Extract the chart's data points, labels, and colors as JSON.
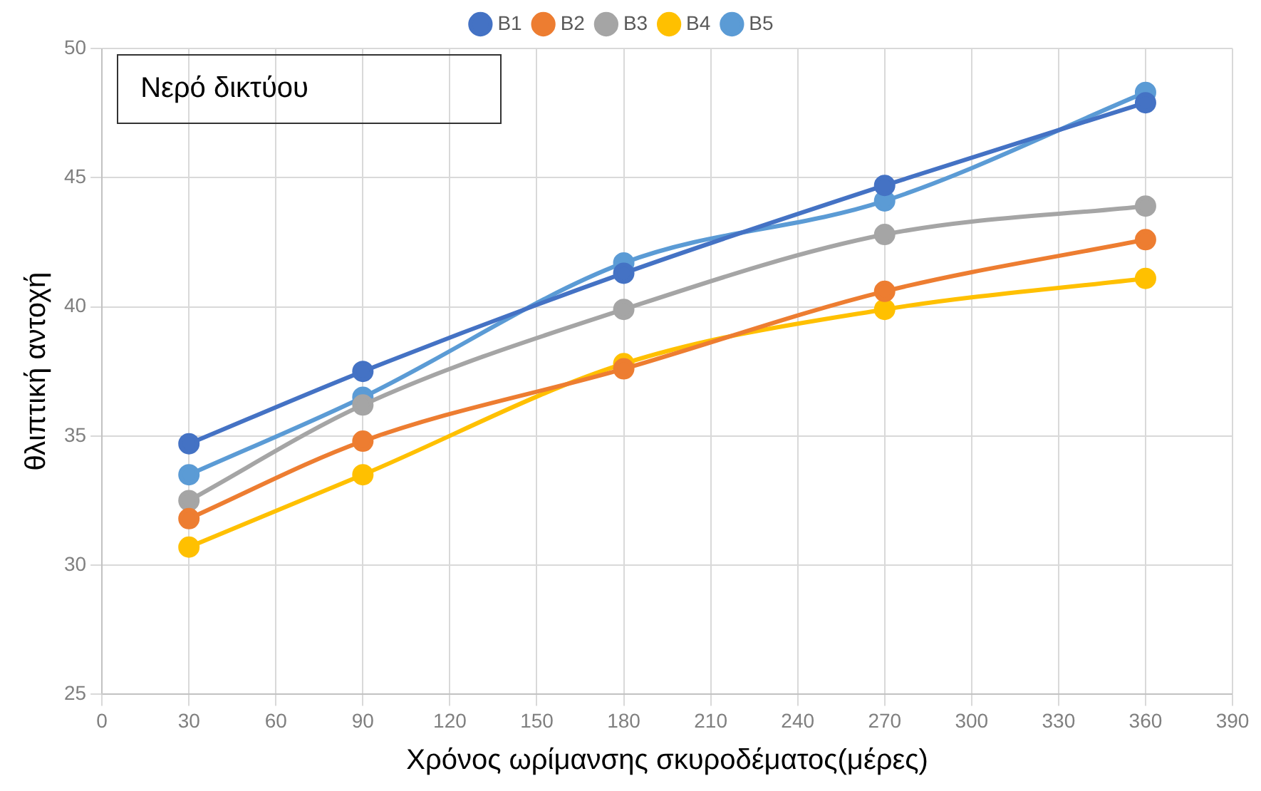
{
  "chart_data": {
    "type": "line",
    "title": "Νερό δικτύου",
    "xlabel": "Χρόνος ωρίμανσης σκυροδέματος(μέρες)",
    "ylabel": "θλιπτική αντοχή",
    "x": [
      30,
      90,
      180,
      270,
      360
    ],
    "series": [
      {
        "name": "B1",
        "color": "#4472c4",
        "values": [
          34.7,
          37.5,
          41.3,
          44.7,
          47.9
        ]
      },
      {
        "name": "B2",
        "color": "#ed7d31",
        "values": [
          31.8,
          34.8,
          37.6,
          40.6,
          42.6
        ]
      },
      {
        "name": "B3",
        "color": "#a5a5a5",
        "values": [
          32.5,
          36.2,
          39.9,
          42.8,
          43.9
        ]
      },
      {
        "name": "B4",
        "color": "#ffc000",
        "values": [
          30.7,
          33.5,
          37.8,
          39.9,
          41.1
        ]
      },
      {
        "name": "B5",
        "color": "#5b9bd5",
        "values": [
          33.5,
          36.5,
          41.7,
          44.1,
          48.3
        ]
      }
    ],
    "xlim": [
      0,
      390
    ],
    "xticks": [
      0,
      30,
      60,
      90,
      120,
      150,
      180,
      210,
      240,
      270,
      300,
      330,
      360,
      390
    ],
    "ylim": [
      25,
      50
    ],
    "yticks": [
      25,
      30,
      35,
      40,
      45,
      50
    ],
    "grid": true,
    "legend": "top",
    "marker": "circle",
    "line_style": "solid"
  }
}
